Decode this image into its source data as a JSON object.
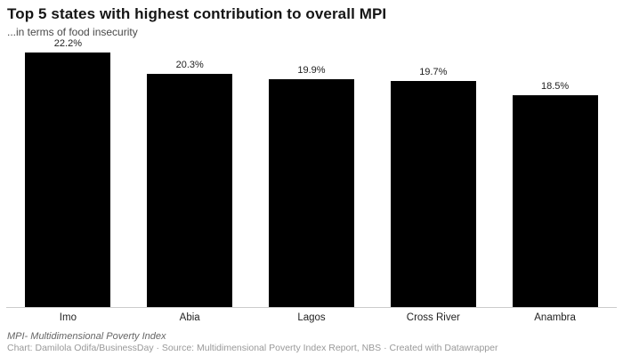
{
  "header": {
    "title": "Top 5 states with highest contribution to overall MPI",
    "subtitle": "...in terms of food insecurity"
  },
  "chart_data": {
    "type": "bar",
    "title": "Top 5 states with highest contribution to overall MPI",
    "subtitle": "...in terms of food insecurity",
    "categories": [
      "Imo",
      "Abia",
      "Lagos",
      "Cross River",
      "Anambra"
    ],
    "values": [
      22.2,
      20.3,
      19.9,
      19.7,
      18.5
    ],
    "value_labels": [
      "22.2%",
      "20.3%",
      "19.9%",
      "19.7%",
      "18.5%"
    ],
    "xlabel": "",
    "ylabel": "",
    "ylim": [
      0,
      22.2
    ],
    "grid": false,
    "legend": false,
    "orientation": "vertical"
  },
  "footer": {
    "note": "MPI- Multidimensional Poverty Index",
    "credits": "Chart: Damilola Odifa/BusinessDay · Source: Multidimensional Poverty Index Report, NBS · Created with Datawrapper"
  },
  "colors": {
    "bar": "#000000",
    "axis_line": "#cccccc",
    "background": "#ffffff"
  }
}
